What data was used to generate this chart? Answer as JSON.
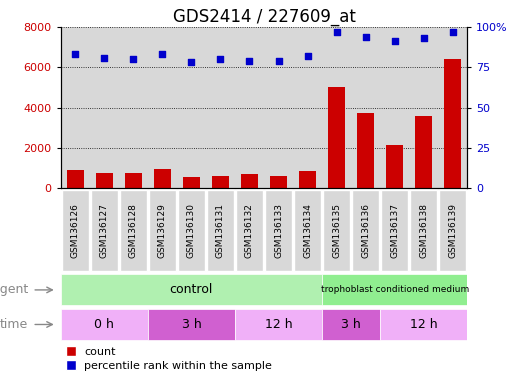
{
  "title": "GDS2414 / 227609_at",
  "samples": [
    "GSM136126",
    "GSM136127",
    "GSM136128",
    "GSM136129",
    "GSM136130",
    "GSM136131",
    "GSM136132",
    "GSM136133",
    "GSM136134",
    "GSM136135",
    "GSM136136",
    "GSM136137",
    "GSM136138",
    "GSM136139"
  ],
  "counts": [
    900,
    750,
    750,
    950,
    550,
    600,
    700,
    600,
    850,
    5000,
    3750,
    2150,
    3600,
    6400
  ],
  "percentile_ranks": [
    83,
    81,
    80,
    83,
    78,
    80,
    79,
    79,
    82,
    97,
    94,
    91,
    93,
    97
  ],
  "bar_color": "#cc0000",
  "dot_color": "#0000cc",
  "ylim_left": [
    0,
    8000
  ],
  "ylim_right": [
    0,
    100
  ],
  "yticks_left": [
    0,
    2000,
    4000,
    6000,
    8000
  ],
  "yticks_right": [
    0,
    25,
    50,
    75,
    100
  ],
  "ytick_labels_right": [
    "0",
    "25",
    "50",
    "75",
    "100%"
  ],
  "bg_color": "#ffffff",
  "plot_bg_color": "#d8d8d8",
  "title_fontsize": 12,
  "tick_fontsize": 8,
  "label_fontsize": 9,
  "legend_fontsize": 8,
  "agent_label_color": "#888888",
  "control_color": "#b0f0b0",
  "troph_color": "#90ee90",
  "time_colors": [
    "#f0b0f8",
    "#d060d0",
    "#f0b0f8",
    "#d060d0",
    "#f0b0f8"
  ],
  "time_groups": [
    {
      "label": "0 h",
      "start": 0,
      "end": 3
    },
    {
      "label": "3 h",
      "start": 3,
      "end": 6
    },
    {
      "label": "12 h",
      "start": 6,
      "end": 9
    },
    {
      "label": "3 h",
      "start": 9,
      "end": 11
    },
    {
      "label": "12 h",
      "start": 11,
      "end": 14
    }
  ],
  "n_samples": 14,
  "n_control": 9,
  "n_troph": 5
}
